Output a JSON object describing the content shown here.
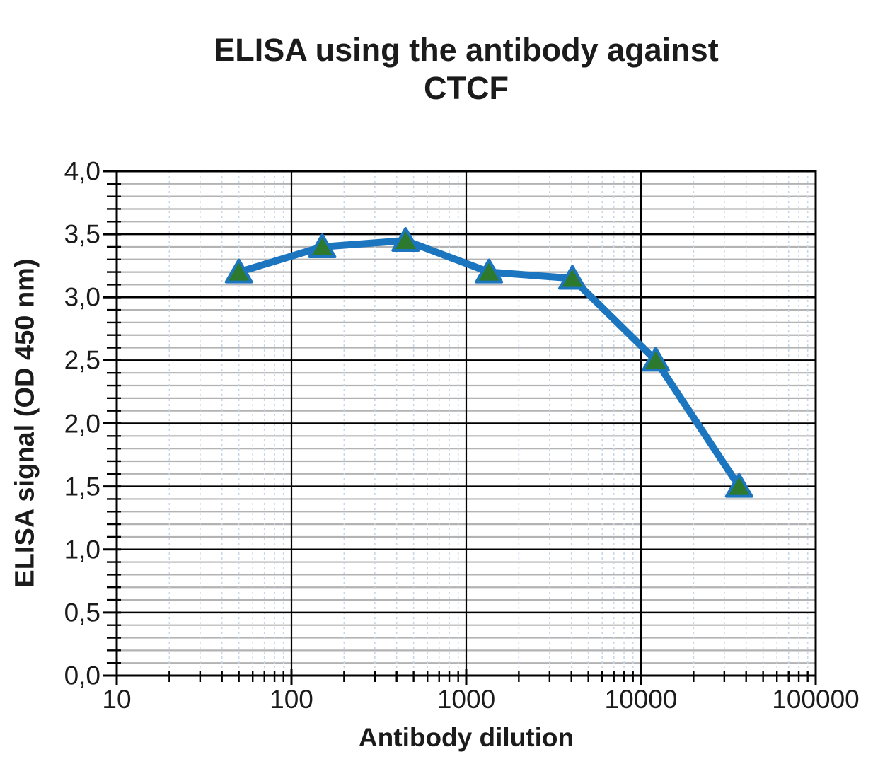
{
  "figure": {
    "title_line1": "ELISA using the antibody against",
    "title_line2": "CTCF",
    "xlabel": "Antibody dilution",
    "ylabel": "ELISA signal (OD 450 nm)"
  },
  "chart_data": {
    "type": "line",
    "title": "ELISA using the antibody against CTCF",
    "xlabel": "Antibody dilution",
    "ylabel": "ELISA signal (OD 450 nm)",
    "x_scale": "log",
    "x": [
      50,
      150,
      450,
      1350,
      4050,
      12150,
      36450
    ],
    "y": [
      3.2,
      3.4,
      3.45,
      3.2,
      3.15,
      2.5,
      1.5
    ],
    "xlim": [
      10,
      100000
    ],
    "ylim": [
      0,
      4
    ],
    "x_tick_labels": [
      "10",
      "100",
      "1000",
      "10000",
      "100000"
    ],
    "y_tick_labels": [
      "0,0",
      "0,5",
      "1,0",
      "1,5",
      "2,0",
      "2,5",
      "3,0",
      "3,5",
      "4,0"
    ],
    "y_major_step": 0.5,
    "y_minor_step": 0.1,
    "grid": true,
    "legend": "none",
    "marker": "triangle-up",
    "colors": {
      "line": "#1b75bf",
      "marker_fill": "#2d7a2f",
      "marker_stroke": "#1b75bf",
      "major_grid": "#000000",
      "minor_grid_h": "#b3b3b3",
      "minor_grid_v": "#c9d7e6",
      "axis": "#000000",
      "text": "#1b1b1b"
    }
  }
}
